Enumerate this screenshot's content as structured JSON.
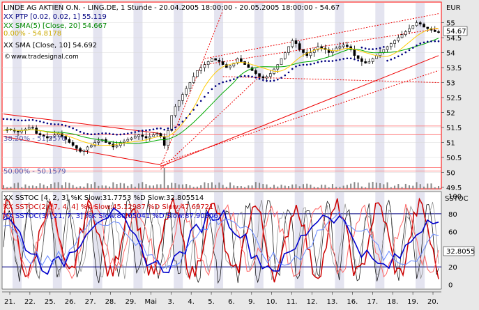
{
  "chart_data": [
    {
      "type": "line",
      "title": "LINDE AG AKTIEN O.N. - LING.DE, 1 Stunde - 20.04.2005 18:00:00 - 20.05.2005 18:00:00 - 54.67",
      "legend": [
        "XX PTP [0.02, 0.02, 1] 55.119",
        "XX SMA(5) [Close, 20] 54.667",
        "0.00% - 54.8178",
        "XX SMA [Close, 10] 54.692"
      ],
      "source": "www.tradesignal.com",
      "currency_label": "EUR",
      "last_price": "54.67",
      "ylim": [
        49.5,
        55.5
      ],
      "y_ticks": [
        "55",
        "54.5",
        "54",
        "53.5",
        "53",
        "52.5",
        "52",
        "51.5",
        "51",
        "50.5",
        "50",
        "49.5"
      ],
      "fib_labels": [
        "38.20% - 51.2576",
        "50.00% - 50.1579"
      ],
      "x_ticks": [
        "21.",
        "22.",
        "25.",
        "26.",
        "27.",
        "28.",
        "29.",
        "Mai",
        "3.",
        "4.",
        "5.",
        "6.",
        "9.",
        "10.",
        "11.",
        "12.",
        "13.",
        "16.",
        "17.",
        "18.",
        "19.",
        "20."
      ],
      "series": [
        {
          "name": "SMA 20",
          "color": "#00aa00"
        },
        {
          "name": "SMA 10",
          "color": "#ffcc00"
        },
        {
          "name": "PTP",
          "color": "#000080"
        }
      ],
      "close": [
        51.4,
        51.45,
        51.42,
        51.38,
        51.35,
        51.4,
        51.45,
        51.5,
        51.48,
        51.3,
        51.25,
        51.2,
        51.15,
        51.2,
        51.25,
        51.3,
        51.2,
        51.1,
        51.0,
        50.9,
        50.8,
        50.7,
        50.75,
        50.85,
        50.9,
        51.0,
        51.05,
        51.1,
        51.0,
        50.95,
        50.85,
        50.9,
        51.0,
        51.05,
        51.1,
        51.15,
        51.2,
        51.25,
        51.2,
        51.15,
        51.2,
        51.25,
        51.3,
        51.2,
        50.9,
        51.4,
        51.9,
        52.2,
        52.4,
        52.6,
        52.8,
        53.0,
        53.2,
        53.4,
        53.5,
        53.6,
        53.7,
        53.8,
        53.75,
        53.7,
        53.6,
        53.5,
        53.55,
        53.65,
        53.8,
        53.7,
        53.6,
        53.5,
        53.4,
        53.3,
        53.2,
        53.15,
        53.2,
        53.3,
        53.45,
        53.6,
        53.8,
        54.0,
        54.2,
        54.4,
        54.3,
        54.1,
        54.0,
        53.9,
        54.0,
        54.1,
        54.2,
        54.15,
        54.1,
        54.0,
        54.05,
        54.15,
        54.2,
        54.25,
        54.2,
        54.1,
        53.9,
        53.8,
        53.7,
        53.65,
        53.7,
        53.8,
        53.9,
        54.0,
        54.1,
        54.2,
        54.3,
        54.4,
        54.5,
        54.6,
        54.7,
        54.8,
        54.9,
        55.0,
        54.95,
        54.85,
        54.8,
        54.75,
        54.7,
        54.67
      ]
    },
    {
      "type": "line",
      "title": "SSTOC",
      "legend": [
        "XX SSTOC [4, 2, 3] %K Slow:31.7753 %D Slow:32.805514",
        "XX SSTOC(2) [7, 4, 4] %K Slow:45.12987 %D Slow:47.69721",
        "XX SSTOC(3) [21, 7, 3] %K Slow:80.05041 %D Slow:87.90306"
      ],
      "ylim": [
        -5,
        105
      ],
      "y_ticks": [
        "100",
        "80",
        "60",
        "40",
        "20",
        "0"
      ],
      "last_value": "32.8055",
      "reference_lines": [
        80,
        20
      ]
    }
  ]
}
